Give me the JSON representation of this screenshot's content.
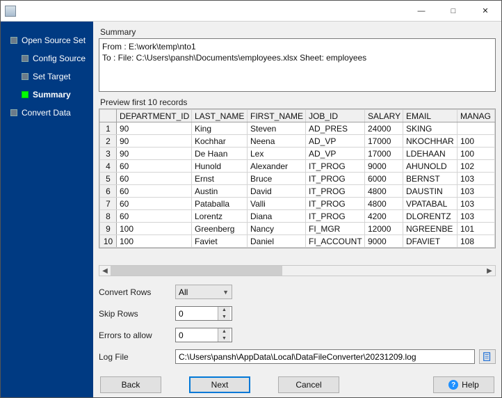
{
  "window": {
    "min_tooltip": "Minimize",
    "max_tooltip": "Maximize",
    "close_tooltip": "Close"
  },
  "sidebar": {
    "items": [
      {
        "label": "Open Source Set"
      },
      {
        "label": "Config Source"
      },
      {
        "label": "Set Target"
      },
      {
        "label": "Summary",
        "active": true
      },
      {
        "label": "Convert Data"
      }
    ]
  },
  "summary": {
    "title": "Summary",
    "line1": "From : E:\\work\\temp\\nto1",
    "line2": "To : File: C:\\Users\\pansh\\Documents\\employees.xlsx Sheet: employees"
  },
  "preview": {
    "title": "Preview first 10 records",
    "columns": [
      "DEPARTMENT_ID",
      "LAST_NAME",
      "FIRST_NAME",
      "JOB_ID",
      "SALARY",
      "EMAIL",
      "MANAG"
    ],
    "rows": [
      [
        "90",
        "King",
        "Steven",
        "AD_PRES",
        "24000",
        "SKING",
        ""
      ],
      [
        "90",
        "Kochhar",
        "Neena",
        "AD_VP",
        "17000",
        "NKOCHHAR",
        "100"
      ],
      [
        "90",
        "De Haan",
        "Lex",
        "AD_VP",
        "17000",
        "LDEHAAN",
        "100"
      ],
      [
        "60",
        "Hunold",
        "Alexander",
        "IT_PROG",
        "9000",
        "AHUNOLD",
        "102"
      ],
      [
        "60",
        "Ernst",
        "Bruce",
        "IT_PROG",
        "6000",
        "BERNST",
        "103"
      ],
      [
        "60",
        "Austin",
        "David",
        "IT_PROG",
        "4800",
        "DAUSTIN",
        "103"
      ],
      [
        "60",
        "Pataballa",
        "Valli",
        "IT_PROG",
        "4800",
        "VPATABAL",
        "103"
      ],
      [
        "60",
        "Lorentz",
        "Diana",
        "IT_PROG",
        "4200",
        "DLORENTZ",
        "103"
      ],
      [
        "100",
        "Greenberg",
        "Nancy",
        "FI_MGR",
        "12000",
        "NGREENBE",
        "101"
      ],
      [
        "100",
        "Faviet",
        "Daniel",
        "FI_ACCOUNT",
        "9000",
        "DFAVIET",
        "108"
      ]
    ]
  },
  "form": {
    "convert_rows_label": "Convert Rows",
    "convert_rows_value": "All",
    "skip_rows_label": "Skip Rows",
    "skip_rows_value": "0",
    "errors_label": "Errors to allow",
    "errors_value": "0",
    "log_label": "Log File",
    "log_value": "C:\\Users\\pansh\\AppData\\Local\\DataFileConverter\\20231209.log"
  },
  "buttons": {
    "back": "Back",
    "next": "Next",
    "cancel": "Cancel",
    "help": "Help"
  },
  "colors": {
    "sidebar_bg": "#003a82",
    "active_node": "#00ff00",
    "primary_border": "#0178d7"
  }
}
